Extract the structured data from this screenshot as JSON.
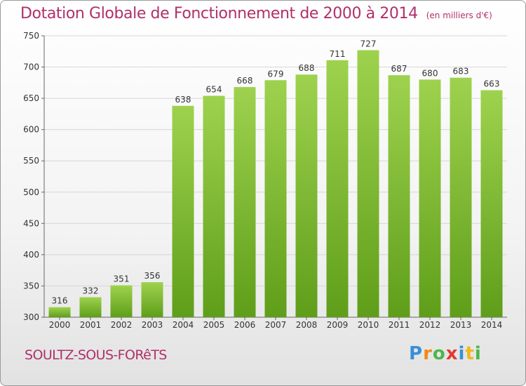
{
  "chart_data": {
    "type": "bar",
    "title": "Dotation Globale de Fonctionnement de 2000 à 2014",
    "subtitle": "(en milliers d'€)",
    "categories": [
      "2000",
      "2001",
      "2002",
      "2003",
      "2004",
      "2005",
      "2006",
      "2007",
      "2008",
      "2009",
      "2010",
      "2011",
      "2012",
      "2013",
      "2014"
    ],
    "values": [
      316,
      332,
      351,
      356,
      638,
      654,
      668,
      679,
      688,
      711,
      727,
      687,
      680,
      683,
      663
    ],
    "ylim": [
      300,
      750
    ],
    "yticks": [
      300,
      350,
      400,
      450,
      500,
      550,
      600,
      650,
      700,
      750
    ],
    "grid": true,
    "bar_color_top": "#9ed24e",
    "bar_color_bottom": "#5f9e1a"
  },
  "footer": {
    "city": "SOULTZ-SOUS-FORêTS",
    "logo_letters": [
      {
        "ch": "P",
        "color": "#3a8fd6"
      },
      {
        "ch": "r",
        "color": "#f08a1c"
      },
      {
        "ch": "o",
        "color": "#4bb64b"
      },
      {
        "ch": "x",
        "color": "#e23b2e"
      },
      {
        "ch": "i",
        "color": "#3a8fd6"
      },
      {
        "ch": "t",
        "color": "#f0b81c"
      },
      {
        "ch": "i",
        "color": "#4bb64b"
      }
    ]
  }
}
